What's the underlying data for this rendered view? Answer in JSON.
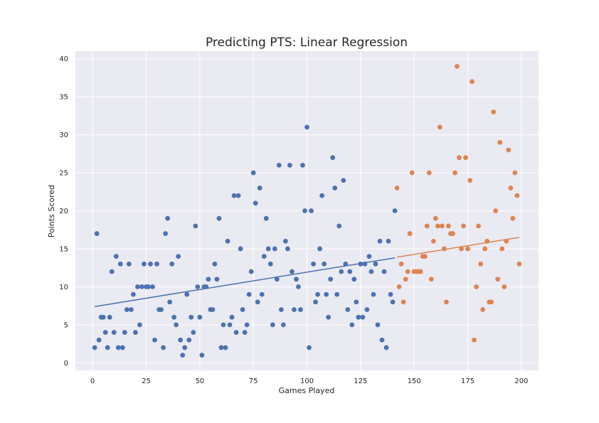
{
  "chart_data": {
    "type": "scatter",
    "title": "Predicting PTS: Linear Regression",
    "xlabel": "Games Played",
    "ylabel": "Points Scored",
    "xlim": [
      -8,
      208
    ],
    "ylim": [
      -1,
      41
    ],
    "xticks": [
      0,
      25,
      50,
      75,
      100,
      125,
      150,
      175,
      200
    ],
    "yticks": [
      0,
      5,
      10,
      15,
      20,
      25,
      30,
      35,
      40
    ],
    "grid": true,
    "colors": {
      "background": "#eaeaf2",
      "grid": "#ffffff",
      "train": "#4c72b0",
      "test": "#dd8452"
    },
    "series": [
      {
        "kind": "points",
        "color_key": "train",
        "points": [
          [
            1,
            2
          ],
          [
            2,
            17
          ],
          [
            3,
            3
          ],
          [
            4,
            6
          ],
          [
            5,
            6
          ],
          [
            6,
            4
          ],
          [
            7,
            2
          ],
          [
            8,
            6
          ],
          [
            9,
            12
          ],
          [
            10,
            4
          ],
          [
            11,
            14
          ],
          [
            12,
            2
          ],
          [
            13,
            13
          ],
          [
            14,
            2
          ],
          [
            15,
            4
          ],
          [
            16,
            7
          ],
          [
            17,
            13
          ],
          [
            18,
            7
          ],
          [
            19,
            9
          ],
          [
            20,
            4
          ],
          [
            21,
            10
          ],
          [
            22,
            5
          ],
          [
            23,
            10
          ],
          [
            24,
            13
          ],
          [
            25,
            10
          ],
          [
            26,
            10
          ],
          [
            27,
            13
          ],
          [
            28,
            10
          ],
          [
            29,
            3
          ],
          [
            30,
            13
          ],
          [
            31,
            7
          ],
          [
            32,
            7
          ],
          [
            33,
            2
          ],
          [
            34,
            17
          ],
          [
            35,
            19
          ],
          [
            36,
            8
          ],
          [
            37,
            13
          ],
          [
            38,
            6
          ],
          [
            39,
            5
          ],
          [
            40,
            14
          ],
          [
            41,
            3
          ],
          [
            42,
            1
          ],
          [
            43,
            2
          ],
          [
            44,
            9
          ],
          [
            45,
            3
          ],
          [
            46,
            6
          ],
          [
            47,
            4
          ],
          [
            48,
            18
          ],
          [
            49,
            10
          ],
          [
            50,
            6
          ],
          [
            51,
            1
          ],
          [
            52,
            10
          ],
          [
            53,
            10
          ],
          [
            54,
            11
          ],
          [
            55,
            7
          ],
          [
            56,
            7
          ],
          [
            57,
            13
          ],
          [
            58,
            11
          ],
          [
            59,
            19
          ],
          [
            60,
            2
          ],
          [
            61,
            5
          ],
          [
            62,
            2
          ],
          [
            63,
            16
          ],
          [
            64,
            5
          ],
          [
            65,
            6
          ],
          [
            66,
            22
          ],
          [
            67,
            4
          ],
          [
            68,
            22
          ],
          [
            69,
            15
          ],
          [
            70,
            7
          ],
          [
            71,
            4
          ],
          [
            72,
            5
          ],
          [
            73,
            9
          ],
          [
            74,
            12
          ],
          [
            75,
            25
          ],
          [
            76,
            21
          ],
          [
            77,
            8
          ],
          [
            78,
            23
          ],
          [
            79,
            9
          ],
          [
            80,
            14
          ],
          [
            81,
            19
          ],
          [
            82,
            15
          ],
          [
            83,
            13
          ],
          [
            84,
            5
          ],
          [
            85,
            15
          ],
          [
            86,
            11
          ],
          [
            87,
            26
          ],
          [
            88,
            7
          ],
          [
            89,
            5
          ],
          [
            90,
            16
          ],
          [
            91,
            15
          ],
          [
            92,
            26
          ],
          [
            93,
            12
          ],
          [
            94,
            7
          ],
          [
            95,
            11
          ],
          [
            96,
            10
          ],
          [
            97,
            7
          ],
          [
            98,
            26
          ],
          [
            99,
            20
          ],
          [
            100,
            31
          ],
          [
            101,
            2
          ],
          [
            102,
            20
          ],
          [
            103,
            13
          ],
          [
            104,
            8
          ],
          [
            105,
            9
          ],
          [
            106,
            15
          ],
          [
            107,
            22
          ],
          [
            108,
            13
          ],
          [
            109,
            9
          ],
          [
            110,
            6
          ],
          [
            111,
            11
          ],
          [
            112,
            27
          ],
          [
            113,
            23
          ],
          [
            114,
            9
          ],
          [
            115,
            18
          ],
          [
            116,
            12
          ],
          [
            117,
            24
          ],
          [
            118,
            13
          ],
          [
            119,
            7
          ],
          [
            120,
            12
          ],
          [
            121,
            5
          ],
          [
            122,
            11
          ],
          [
            123,
            8
          ],
          [
            124,
            6
          ],
          [
            125,
            13
          ],
          [
            126,
            6
          ],
          [
            127,
            13
          ],
          [
            128,
            7
          ],
          [
            129,
            14
          ],
          [
            130,
            12
          ],
          [
            131,
            9
          ],
          [
            132,
            13
          ],
          [
            133,
            5
          ],
          [
            134,
            16
          ],
          [
            135,
            3
          ],
          [
            136,
            12
          ],
          [
            137,
            2
          ],
          [
            138,
            16
          ],
          [
            139,
            9
          ],
          [
            140,
            8
          ],
          [
            141,
            20
          ]
        ]
      },
      {
        "kind": "points",
        "color_key": "test",
        "points": [
          [
            142,
            23
          ],
          [
            143,
            10
          ],
          [
            144,
            13
          ],
          [
            145,
            8
          ],
          [
            146,
            11
          ],
          [
            147,
            12
          ],
          [
            148,
            17
          ],
          [
            149,
            25
          ],
          [
            150,
            12
          ],
          [
            151,
            12
          ],
          [
            152,
            12
          ],
          [
            153,
            12
          ],
          [
            154,
            14
          ],
          [
            155,
            14
          ],
          [
            156,
            18
          ],
          [
            157,
            25
          ],
          [
            158,
            11
          ],
          [
            159,
            16
          ],
          [
            160,
            19
          ],
          [
            161,
            18
          ],
          [
            162,
            31
          ],
          [
            163,
            18
          ],
          [
            164,
            15
          ],
          [
            165,
            8
          ],
          [
            166,
            18
          ],
          [
            167,
            17
          ],
          [
            168,
            17
          ],
          [
            169,
            25
          ],
          [
            170,
            39
          ],
          [
            171,
            27
          ],
          [
            172,
            15
          ],
          [
            173,
            18
          ],
          [
            174,
            27
          ],
          [
            175,
            15
          ],
          [
            176,
            24
          ],
          [
            177,
            37
          ],
          [
            178,
            3
          ],
          [
            179,
            10
          ],
          [
            180,
            18
          ],
          [
            181,
            13
          ],
          [
            182,
            7
          ],
          [
            183,
            15
          ],
          [
            184,
            16
          ],
          [
            185,
            8
          ],
          [
            186,
            8
          ],
          [
            187,
            33
          ],
          [
            188,
            20
          ],
          [
            189,
            11
          ],
          [
            190,
            29
          ],
          [
            191,
            15
          ],
          [
            192,
            10
          ],
          [
            193,
            16
          ],
          [
            194,
            28
          ],
          [
            195,
            23
          ],
          [
            196,
            19
          ],
          [
            197,
            25
          ],
          [
            198,
            22
          ],
          [
            199,
            13
          ]
        ]
      },
      {
        "kind": "line",
        "color_key": "train",
        "points": [
          [
            1,
            7.4
          ],
          [
            141,
            13.8
          ]
        ]
      },
      {
        "kind": "line",
        "color_key": "test",
        "points": [
          [
            142,
            13.9
          ],
          [
            199,
            16.5
          ]
        ]
      }
    ]
  }
}
